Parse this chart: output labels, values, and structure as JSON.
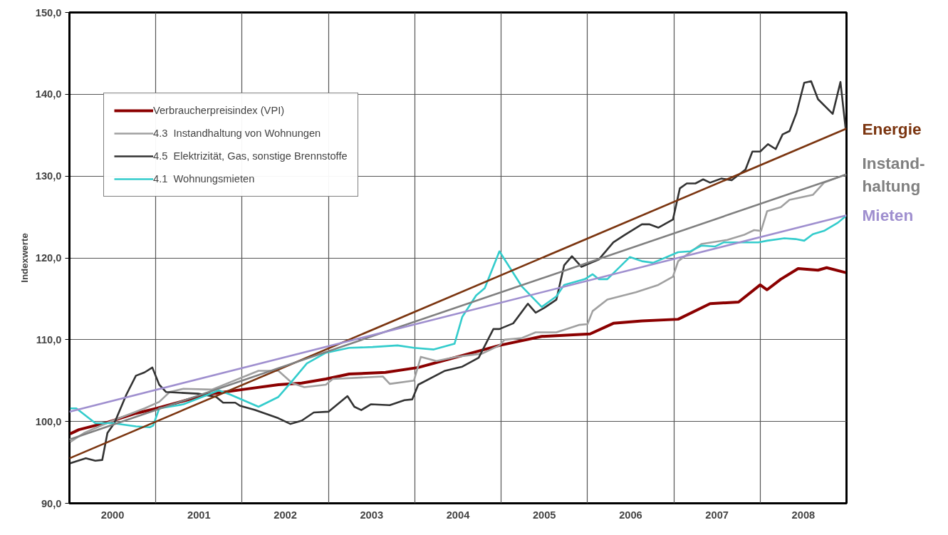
{
  "chart_data": {
    "type": "line",
    "ylabel": "Indexwerte",
    "xlim": [
      2000,
      2009
    ],
    "xticks": [
      {
        "value": 2000.5,
        "label": "2000"
      },
      {
        "value": 2001,
        "label": null
      },
      {
        "value": 2001.5,
        "label": "2001"
      },
      {
        "value": 2002,
        "label": null
      },
      {
        "value": 2002.5,
        "label": "2002"
      },
      {
        "value": 2003,
        "label": null
      },
      {
        "value": 2003.5,
        "label": "2003"
      },
      {
        "value": 2004,
        "label": null
      },
      {
        "value": 2004.5,
        "label": "2004"
      },
      {
        "value": 2005,
        "label": null
      },
      {
        "value": 2005.5,
        "label": "2005"
      },
      {
        "value": 2006,
        "label": null
      },
      {
        "value": 2006.5,
        "label": "2006"
      },
      {
        "value": 2007,
        "label": null
      },
      {
        "value": 2007.5,
        "label": "2007"
      },
      {
        "value": 2008,
        "label": null
      },
      {
        "value": 2008.5,
        "label": "2008"
      }
    ],
    "ylim": [
      90,
      150
    ],
    "yticks": [
      {
        "value": 90,
        "label": "90,0"
      },
      {
        "value": 100,
        "label": "100,0"
      },
      {
        "value": 110,
        "label": "110,0"
      },
      {
        "value": 120,
        "label": "120,0"
      },
      {
        "value": 130,
        "label": "130,0"
      },
      {
        "value": 140,
        "label": "140,0"
      },
      {
        "value": 150,
        "label": "150,0"
      }
    ],
    "grid": true,
    "legend": "top left",
    "series": [
      {
        "name": "Verbraucherpreisindex (VPI)",
        "color": "#8b0000",
        "x": [
          2000.01,
          2000.11,
          2000.44,
          2000.77,
          2001.01,
          2001.59,
          2002.0,
          2002.42,
          2002.69,
          2002.97,
          2003.24,
          2003.66,
          2004.04,
          2004.98,
          2005.47,
          2006.03,
          2006.3,
          2006.63,
          2007.05,
          2007.42,
          2007.75,
          2008.0,
          2008.08,
          2008.24,
          2008.44,
          2008.67,
          2008.77,
          2008.99
        ],
        "values": [
          98.5,
          99.0,
          99.9,
          101.0,
          101.6,
          103.3,
          103.9,
          104.5,
          104.7,
          105.2,
          105.8,
          106.0,
          106.6,
          109.3,
          110.4,
          110.7,
          112.0,
          112.3,
          112.5,
          114.4,
          114.6,
          116.7,
          116.1,
          117.4,
          118.7,
          118.5,
          118.8,
          118.2
        ]
      },
      {
        "name": "4.3  Instandhaltung von Wohnungen",
        "color": "#a0a0a0",
        "x": [
          2000.01,
          2000.17,
          2000.5,
          2000.87,
          2001.04,
          2001.16,
          2001.32,
          2001.65,
          2002.19,
          2002.42,
          2002.58,
          2002.72,
          2002.97,
          2003.05,
          2003.63,
          2003.71,
          2003.99,
          2004.07,
          2004.25,
          2004.48,
          2004.78,
          2004.98,
          2005.04,
          2005.24,
          2005.4,
          2005.64,
          2005.9,
          2006.0,
          2006.06,
          2006.23,
          2006.56,
          2006.82,
          2006.99,
          2007.05,
          2007.32,
          2007.62,
          2007.81,
          2007.93,
          2008.01,
          2008.08,
          2008.24,
          2008.34,
          2008.61,
          2008.74,
          2008.99
        ],
        "values": [
          97.5,
          98.6,
          100.1,
          101.6,
          102.4,
          103.6,
          104.0,
          103.9,
          106.2,
          106.2,
          104.7,
          104.2,
          104.5,
          105.2,
          105.5,
          104.6,
          105.0,
          107.9,
          107.4,
          107.9,
          108.3,
          109.3,
          110.0,
          110.2,
          110.9,
          110.9,
          111.8,
          111.9,
          113.5,
          114.9,
          115.8,
          116.7,
          117.7,
          119.6,
          121.7,
          122.2,
          122.8,
          123.4,
          123.3,
          125.7,
          126.2,
          127.1,
          127.7,
          129.2,
          130.2
        ]
      },
      {
        "name": "4.5  Elektrizität, Gas, sonstige Brennstoffe",
        "color": "#333333",
        "x": [
          2000.01,
          2000.19,
          2000.3,
          2000.38,
          2000.44,
          2000.52,
          2000.66,
          2000.77,
          2000.87,
          2000.96,
          2001.04,
          2001.12,
          2001.49,
          2001.7,
          2001.78,
          2001.92,
          2001.98,
          2002.15,
          2002.42,
          2002.56,
          2002.69,
          2002.83,
          2003.0,
          2003.22,
          2003.3,
          2003.38,
          2003.49,
          2003.71,
          2003.88,
          2003.97,
          2004.04,
          2004.35,
          2004.55,
          2004.74,
          2004.91,
          2004.98,
          2005.14,
          2005.31,
          2005.4,
          2005.5,
          2005.64,
          2005.73,
          2005.82,
          2005.93,
          2006.13,
          2006.3,
          2006.43,
          2006.63,
          2006.72,
          2006.82,
          2006.99,
          2007.07,
          2007.15,
          2007.25,
          2007.34,
          2007.42,
          2007.55,
          2007.67,
          2007.83,
          2007.91,
          2008.0,
          2008.09,
          2008.18,
          2008.26,
          2008.34,
          2008.42,
          2008.51,
          2008.59,
          2008.67,
          2008.84,
          2008.93,
          2008.99
        ],
        "values": [
          94.9,
          95.5,
          95.2,
          95.3,
          98.6,
          99.8,
          103.3,
          105.6,
          106.0,
          106.6,
          104.5,
          103.6,
          103.4,
          103.0,
          102.3,
          102.3,
          101.9,
          101.4,
          100.4,
          99.7,
          100.1,
          101.1,
          101.2,
          103.1,
          101.8,
          101.4,
          102.1,
          102.0,
          102.6,
          102.7,
          104.5,
          106.2,
          106.7,
          107.8,
          111.3,
          111.3,
          112.0,
          114.4,
          113.3,
          113.9,
          114.9,
          119.1,
          120.2,
          118.9,
          119.8,
          121.9,
          122.8,
          124.1,
          124.1,
          123.7,
          124.7,
          128.5,
          129.1,
          129.1,
          129.6,
          129.2,
          129.7,
          129.5,
          130.8,
          133.0,
          133.0,
          133.9,
          133.3,
          135.1,
          135.5,
          137.7,
          141.4,
          141.6,
          139.4,
          137.6,
          141.5,
          135.8
        ]
      },
      {
        "name": "4.1  Wohnungsmieten",
        "color": "#33cccc",
        "x": [
          2000.01,
          2000.08,
          2000.3,
          2000.5,
          2000.77,
          2000.93,
          2000.97,
          2001.04,
          2001.32,
          2001.73,
          2001.86,
          2002.19,
          2002.42,
          2002.56,
          2002.75,
          2002.97,
          2003.24,
          2003.51,
          2003.8,
          2003.99,
          2004.22,
          2004.46,
          2004.55,
          2004.71,
          2004.81,
          2004.98,
          2005.24,
          2005.47,
          2005.64,
          2005.73,
          2005.97,
          2006.06,
          2006.13,
          2006.23,
          2006.49,
          2006.63,
          2006.76,
          2007.05,
          2007.19,
          2007.32,
          2007.48,
          2007.58,
          2007.98,
          2008.08,
          2008.28,
          2008.41,
          2008.51,
          2008.61,
          2008.74,
          2008.9,
          2008.99
        ],
        "values": [
          101.6,
          101.6,
          99.8,
          99.8,
          99.4,
          99.3,
          99.5,
          101.6,
          102.1,
          103.8,
          103.3,
          101.8,
          103.0,
          104.7,
          107.1,
          108.4,
          109.0,
          109.1,
          109.3,
          109.0,
          108.8,
          109.5,
          112.8,
          115.4,
          116.3,
          120.8,
          116.5,
          114.0,
          115.3,
          116.7,
          117.4,
          118.0,
          117.4,
          117.4,
          120.1,
          119.6,
          119.4,
          120.7,
          120.8,
          121.5,
          121.4,
          121.9,
          121.9,
          122.1,
          122.4,
          122.3,
          122.1,
          122.9,
          123.3,
          124.3,
          125.1
        ]
      },
      {
        "color": "#7b3510",
        "x": [
          2000,
          2009
        ],
        "values": [
          95.5,
          135.8
        ]
      },
      {
        "color": "#808080",
        "x": [
          2000,
          2009
        ],
        "values": [
          97.8,
          130.2
        ]
      },
      {
        "color": "#9f8fcf",
        "x": [
          2000,
          2009
        ],
        "values": [
          101.2,
          125.2
        ]
      }
    ],
    "annotations": [
      "Energie",
      "Instand-\nhaltung",
      "Mieten"
    ]
  }
}
